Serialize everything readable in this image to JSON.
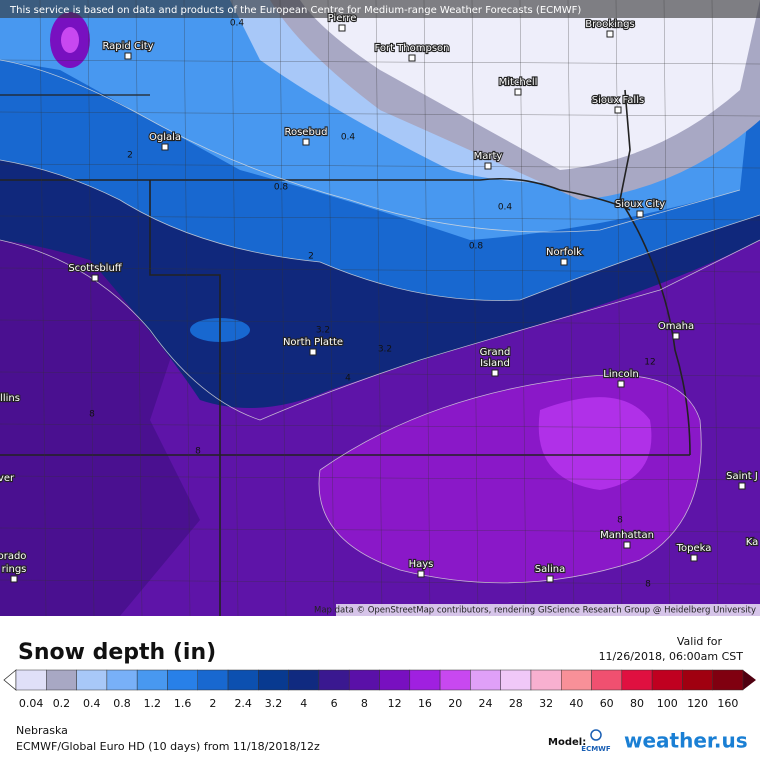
{
  "banner": "This service is based on data and products of the European Centre for Medium-range Weather Forecasts (ECMWF)",
  "map": {
    "cities": [
      "Pierre",
      "Brookings",
      "Rapid City",
      "Fort Thompson",
      "Mitchell",
      "Sioux Falls",
      "Oglala",
      "Rosebud",
      "Marty",
      "Sioux City",
      "Norfolk",
      "Scottsbluff",
      "Omaha",
      "North Platte",
      "Grand",
      "Island",
      "Lincoln",
      "Manhattan",
      "Topeka",
      "Hays",
      "Salina",
      "Saint J",
      "Ka",
      "llins",
      "ver",
      "orado",
      "rings"
    ],
    "contour_labels": [
      "0.4",
      "0.4",
      "0.8",
      "2",
      "0.4",
      "0.8",
      "2",
      "3.2",
      "3.2",
      "4",
      "12",
      "8",
      "8",
      "8",
      "8"
    ],
    "attribution": "Map data © OpenStreetMap contributors, rendering GIScience Research Group @ Heidelberg University"
  },
  "legend": {
    "title": "Snow depth (in)",
    "valid_label": "Valid for",
    "valid_time": "11/26/2018, 06:00am CST",
    "labels": [
      "0.04",
      "0.2",
      "0.4",
      "0.8",
      "1.2",
      "1.6",
      "2",
      "2.4",
      "3.2",
      "4",
      "6",
      "8",
      "12",
      "16",
      "20",
      "24",
      "28",
      "32",
      "40",
      "60",
      "80",
      "100",
      "120",
      "160"
    ],
    "colors": [
      "#e0e0f8",
      "#a8a8c4",
      "#a8c8f8",
      "#78b0f8",
      "#4898f0",
      "#2880e8",
      "#1868d0",
      "#0c50b0",
      "#083a90",
      "#102a80",
      "#3a1890",
      "#5a10a8",
      "#7810c0",
      "#a020e0",
      "#c848f0",
      "#e0a0f8",
      "#f0c8f8",
      "#f8b0d0",
      "#f89098",
      "#f05070",
      "#e01040",
      "#c00020",
      "#a00010",
      "#800010"
    ]
  },
  "footer": {
    "region": "Nebraska",
    "run": "ECMWF/Global Euro HD (10 days) from 11/18/2018/12z",
    "model_label": "Model:",
    "model_logo": "ECMWF",
    "brand": "weather.us"
  }
}
